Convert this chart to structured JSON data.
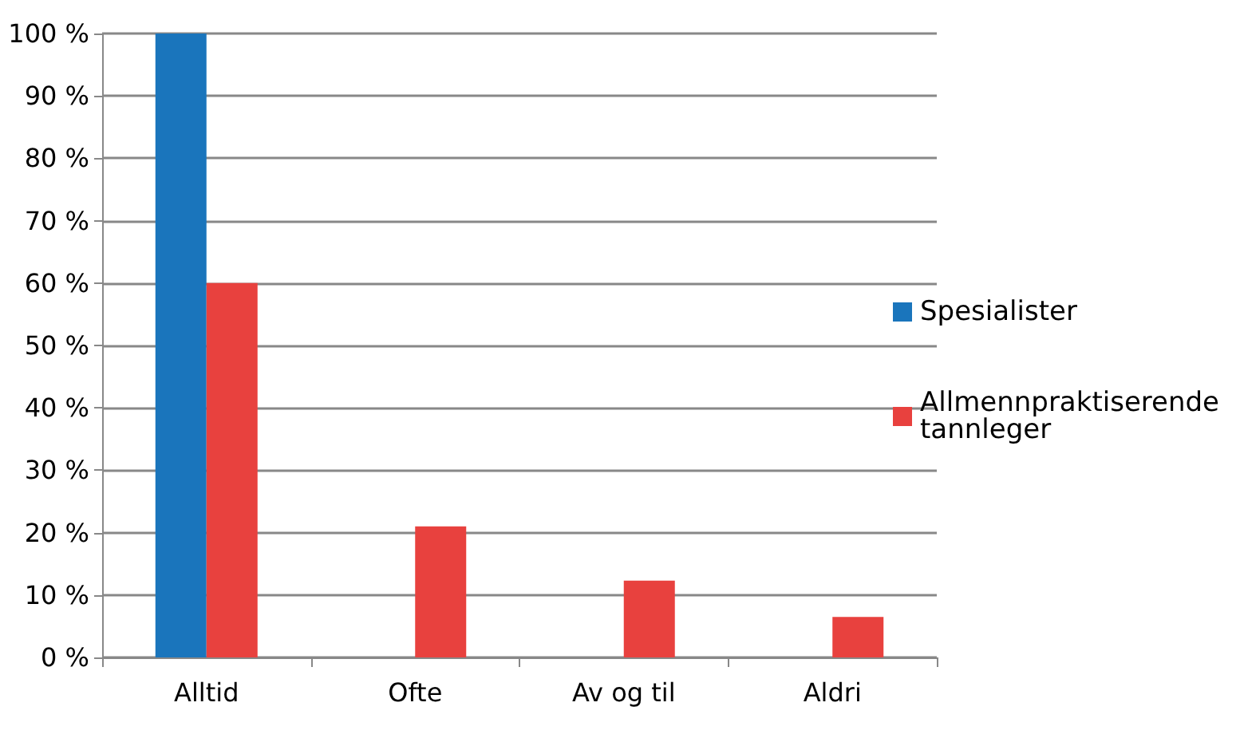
{
  "chart_data": {
    "type": "bar",
    "categories": [
      "Alltid",
      "Ofte",
      "Av og til",
      "Aldri"
    ],
    "series": [
      {
        "name": "Spesialister",
        "color": "#1a75bc",
        "values": [
          100,
          0,
          0,
          0
        ]
      },
      {
        "name": "Allmennpraktiserende tannleger",
        "color": "#e8413e",
        "values": [
          60,
          21,
          12.3,
          6.5
        ]
      }
    ],
    "ylim": [
      0,
      100
    ],
    "yticks": [
      {
        "value": 0,
        "label": "0 %"
      },
      {
        "value": 10,
        "label": "10 %"
      },
      {
        "value": 20,
        "label": "20 %"
      },
      {
        "value": 30,
        "label": "30 %"
      },
      {
        "value": 40,
        "label": "40 %"
      },
      {
        "value": 50,
        "label": "50 %"
      },
      {
        "value": 60,
        "label": "60 %"
      },
      {
        "value": 70,
        "label": "70 %"
      },
      {
        "value": 80,
        "label": "80 %"
      },
      {
        "value": 90,
        "label": "90 %"
      },
      {
        "value": 100,
        "label": "100 %"
      }
    ],
    "grid": "y",
    "legend": "right"
  }
}
